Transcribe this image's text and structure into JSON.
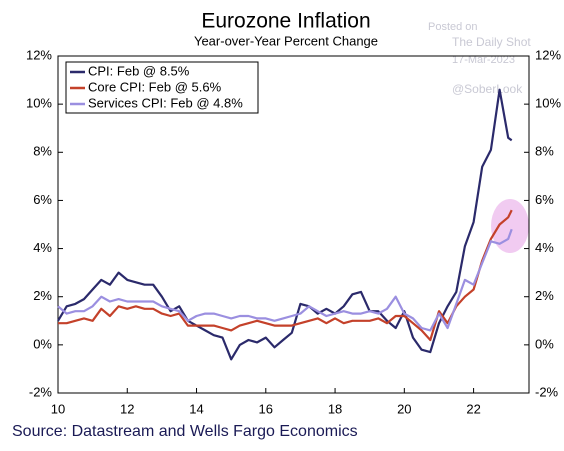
{
  "chart_data": {
    "type": "line",
    "title": "Eurozone Inflation",
    "subtitle": "Year-over-Year Percent Change",
    "source": "Source: Datastream and Wells Fargo Economics",
    "annotations": [
      "Posted on",
      "The Daily Shot",
      "17-Mar-2023",
      "@SoberLook"
    ],
    "x": [
      10,
      10.25,
      10.5,
      10.75,
      11,
      11.25,
      11.5,
      11.75,
      12,
      12.25,
      12.5,
      12.75,
      13,
      13.25,
      13.5,
      13.75,
      14,
      14.25,
      14.5,
      14.75,
      15,
      15.25,
      15.5,
      15.75,
      16,
      16.25,
      16.5,
      16.75,
      17,
      17.25,
      17.5,
      17.75,
      18,
      18.25,
      18.5,
      18.75,
      19,
      19.25,
      19.5,
      19.75,
      20,
      20.25,
      20.5,
      20.75,
      21,
      21.25,
      21.5,
      21.75,
      22,
      22.25,
      22.5,
      22.75,
      23,
      23.1
    ],
    "series": [
      {
        "name": "CPI: Feb @ 8.5%",
        "color": "#2b2a6b",
        "values": [
          1.0,
          1.6,
          1.7,
          1.9,
          2.3,
          2.7,
          2.5,
          3.0,
          2.7,
          2.6,
          2.5,
          2.5,
          2.0,
          1.4,
          1.6,
          1.0,
          0.8,
          0.6,
          0.4,
          0.3,
          -0.6,
          0.0,
          0.2,
          0.1,
          0.3,
          -0.1,
          0.2,
          0.5,
          1.7,
          1.6,
          1.3,
          1.5,
          1.3,
          1.6,
          2.1,
          2.2,
          1.4,
          1.4,
          1.0,
          0.7,
          1.4,
          0.3,
          -0.2,
          -0.3,
          0.9,
          1.6,
          2.2,
          4.1,
          5.1,
          7.4,
          8.1,
          10.6,
          8.6,
          8.5
        ]
      },
      {
        "name": "Core CPI: Feb @ 5.6%",
        "color": "#c4412a",
        "values": [
          0.9,
          0.9,
          1.0,
          1.1,
          1.0,
          1.5,
          1.2,
          1.6,
          1.5,
          1.6,
          1.5,
          1.5,
          1.3,
          1.2,
          1.3,
          0.8,
          0.8,
          0.8,
          0.8,
          0.7,
          0.6,
          0.8,
          0.9,
          1.0,
          0.9,
          0.8,
          0.8,
          0.8,
          0.9,
          1.0,
          1.1,
          0.9,
          1.1,
          0.9,
          1.0,
          1.0,
          1.0,
          1.1,
          0.9,
          1.2,
          1.2,
          0.9,
          0.6,
          0.2,
          1.4,
          0.9,
          1.6,
          2.0,
          2.3,
          3.5,
          4.4,
          5.0,
          5.3,
          5.6
        ]
      },
      {
        "name": "Services CPI: Feb @ 4.8%",
        "color": "#9b8fe0",
        "values": [
          1.6,
          1.3,
          1.4,
          1.4,
          1.6,
          2.0,
          1.8,
          1.9,
          1.8,
          1.8,
          1.8,
          1.8,
          1.6,
          1.5,
          1.4,
          1.0,
          1.2,
          1.3,
          1.3,
          1.2,
          1.1,
          1.2,
          1.2,
          1.1,
          1.1,
          1.0,
          1.1,
          1.2,
          1.3,
          1.6,
          1.4,
          1.2,
          1.3,
          1.4,
          1.3,
          1.3,
          1.4,
          1.3,
          1.5,
          2.0,
          1.3,
          1.1,
          0.7,
          0.6,
          1.3,
          0.7,
          1.7,
          2.7,
          2.5,
          3.4,
          4.3,
          4.2,
          4.4,
          4.8
        ]
      }
    ],
    "xlim": [
      10,
      23.6
    ],
    "xticks": [
      10,
      12,
      14,
      16,
      18,
      20,
      22
    ],
    "ylim": [
      -2,
      12
    ],
    "yticks": [
      {
        "value": -2,
        "label": "-2%"
      },
      {
        "value": 0,
        "label": "0%"
      },
      {
        "value": 2,
        "label": "2%"
      },
      {
        "value": 4,
        "label": "4%"
      },
      {
        "value": 6,
        "label": "6%"
      },
      {
        "value": 8,
        "label": "8%"
      },
      {
        "value": 10,
        "label": "10%"
      },
      {
        "value": 12,
        "label": "12%"
      }
    ],
    "y2lim": [
      -2,
      12
    ],
    "y2ticks": [
      {
        "value": -2,
        "label": "-2%"
      },
      {
        "value": 0,
        "label": "0%"
      },
      {
        "value": 2,
        "label": "2%"
      },
      {
        "value": 4,
        "label": "4%"
      },
      {
        "value": 6,
        "label": "6%"
      },
      {
        "value": 8,
        "label": "8%"
      },
      {
        "value": 10,
        "label": "10%"
      },
      {
        "value": 12,
        "label": "12%"
      }
    ],
    "legend": "upper left"
  }
}
